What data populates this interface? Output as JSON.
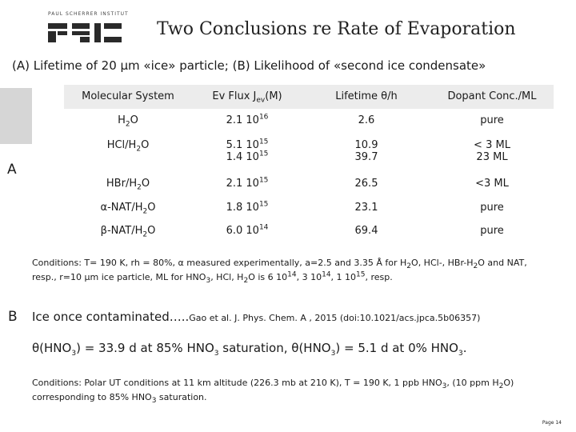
{
  "header": {
    "logo_text": "PAUL SCHERRER INSTITUT",
    "title": "Two Conclusions re Rate of Evaporation",
    "subtitle": "(A) Lifetime of  20 µm «ice» particle; (B) Likelihood of «second ice condensate»"
  },
  "section_a": {
    "label": "A"
  },
  "table": {
    "header": {
      "col1": "Molecular System",
      "col2_main": "Ev Flux J",
      "col2_sub": "ev",
      "col2_tail": "(M)",
      "col3": "Lifetime θ/h",
      "col4": "Dopant Conc./ML"
    },
    "rows": [
      {
        "sys_a": "H",
        "sys_a_sub": "2",
        "sys_b": "O",
        "sys_c_sub": "",
        "sys_d": "",
        "flux_base": "2.1 10",
        "flux_exp": "16",
        "life": "2.6",
        "conc": "pure"
      },
      {
        "sys_a": "HCl/H",
        "sys_a_sub": "2",
        "sys_b": "O",
        "sys_c_sub": "",
        "sys_d": "",
        "flux_base": "5.1 10",
        "flux_exp": "15",
        "flux2_base": "1.4 10",
        "flux2_exp": "15",
        "life": "10.9",
        "life2": "39.7",
        "conc": "< 3 ML",
        "conc2": "23 ML"
      },
      {
        "sys_a": "HBr/H",
        "sys_a_sub": "2",
        "sys_b": "O",
        "sys_c_sub": "",
        "sys_d": "",
        "flux_base": "2.1 10",
        "flux_exp": "15",
        "life": "26.5",
        "conc": "<3 ML"
      },
      {
        "sys_a": "α-NAT/H",
        "sys_a_sub": "2",
        "sys_b": "O",
        "sys_c_sub": "",
        "sys_d": "",
        "flux_base": "1.8 10",
        "flux_exp": "15",
        "life": "23.1",
        "conc": "pure"
      },
      {
        "sys_a": "β-NAT/H",
        "sys_a_sub": "2",
        "sys_b": "O",
        "sys_c_sub": "",
        "sys_d": "",
        "flux_base": "6.0 10",
        "flux_exp": "14",
        "life": "69.4",
        "conc": "pure"
      }
    ]
  },
  "conditions_a": {
    "t1": "Conditions: T= 190 K, rh = 80%, α measured experimentally, a=2.5 and 3.35 Å for H",
    "s1": "2",
    "t2": "O, HCl-, HBr-H",
    "s2": "2",
    "t3": "O and NAT, resp., r=10 µm ice particle, ML for HNO",
    "s3": "3",
    "t4": ", HCl, H",
    "s4": "2",
    "t5": "O is 6 10",
    "p5": "14",
    "t6": ", 3 10",
    "p6": "14",
    "t7": ", 1 10",
    "p7": "15",
    "t8": ", resp."
  },
  "section_b": {
    "label": "B",
    "line_main": "Ice once contaminated…..",
    "line_ref": "Gao et al. J. Phys. Chem. A , 2015 (doi:10.1021/acs.jpca.5b06357)",
    "theta1": "θ(HNO",
    "theta1_sub": "3",
    "theta1_tail": ") = 33.9 d at 85% HNO",
    "theta1_sub2": "3",
    "theta1_end": " saturation, θ(HNO",
    "theta2_sub": "3",
    "theta2_tail": ") = 5.1 d at 0% HNO",
    "theta2_sub2": "3",
    "theta2_end": "."
  },
  "conditions_b": {
    "t1": "Conditions: Polar UT conditions at 11 km altitude (226.3 mb at 210 K), T = 190 K, 1 ppb HNO",
    "s1": "3",
    "t2": ", (10 ppm H",
    "s2": "2",
    "t3": "O) corresponding to 85% HNO",
    "s3": "3",
    "t4": " saturation."
  },
  "footer": {
    "page": "Page 14"
  }
}
